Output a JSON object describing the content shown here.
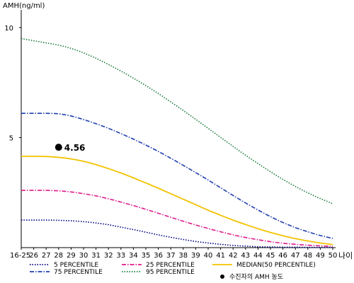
{
  "chart_data": {
    "type": "line",
    "ylabel": "AMH(ng/ml)",
    "xlabel": "나이",
    "ylim": [
      0,
      10.8
    ],
    "yticks": [
      5,
      10
    ],
    "categories": [
      "16-25",
      "26",
      "27",
      "28",
      "29",
      "30",
      "31",
      "32",
      "33",
      "34",
      "35",
      "36",
      "37",
      "38",
      "39",
      "40",
      "41",
      "42",
      "43",
      "44",
      "45",
      "46",
      "47",
      "48",
      "49",
      "50"
    ],
    "series": [
      {
        "name": "5 PERCENTILE",
        "color": "#000080",
        "dash": "1.5,2",
        "values": [
          1.25,
          1.25,
          1.25,
          1.24,
          1.22,
          1.18,
          1.12,
          1.04,
          0.93,
          0.82,
          0.7,
          0.58,
          0.47,
          0.37,
          0.28,
          0.21,
          0.15,
          0.1,
          0.07,
          0.04,
          0.03,
          0.02,
          0.02,
          0.01,
          0.01,
          0.01
        ]
      },
      {
        "name": "25 PERCENTILE",
        "color": "#e0198a",
        "dash": "6,2,1.5,2",
        "values": [
          2.6,
          2.6,
          2.6,
          2.58,
          2.53,
          2.45,
          2.35,
          2.22,
          2.07,
          1.91,
          1.74,
          1.56,
          1.38,
          1.2,
          1.03,
          0.87,
          0.72,
          0.58,
          0.46,
          0.36,
          0.27,
          0.2,
          0.15,
          0.11,
          0.08,
          0.06
        ]
      },
      {
        "name": "MEDIAN(50 PERCENTILE)",
        "color": "#f2c200",
        "dash": "",
        "values": [
          4.15,
          4.15,
          4.14,
          4.1,
          4.03,
          3.92,
          3.77,
          3.59,
          3.39,
          3.17,
          2.94,
          2.7,
          2.45,
          2.2,
          1.95,
          1.7,
          1.47,
          1.25,
          1.05,
          0.86,
          0.69,
          0.54,
          0.41,
          0.3,
          0.21,
          0.14
        ]
      },
      {
        "name": "75 PERCENTILE",
        "color": "#1f3fb0",
        "dash": "6,2,1.5,2",
        "values": [
          6.1,
          6.1,
          6.1,
          6.08,
          5.98,
          5.82,
          5.63,
          5.42,
          5.18,
          4.93,
          4.66,
          4.37,
          4.06,
          3.74,
          3.41,
          3.07,
          2.72,
          2.37,
          2.03,
          1.71,
          1.41,
          1.14,
          0.91,
          0.72,
          0.55,
          0.42
        ]
      },
      {
        "name": "95 PERCENTILE",
        "color": "#1a7a3a",
        "dash": "1.5,2",
        "values": [
          9.5,
          9.4,
          9.3,
          9.2,
          9.05,
          8.85,
          8.6,
          8.32,
          8.02,
          7.7,
          7.36,
          7.0,
          6.62,
          6.23,
          5.83,
          5.42,
          5.01,
          4.6,
          4.2,
          3.82,
          3.45,
          3.1,
          2.78,
          2.49,
          2.23,
          2.0
        ]
      }
    ],
    "point": {
      "name": "수진자의 AMH 농도",
      "x": "28",
      "y": 4.56,
      "label": "4.56",
      "color": "#000000"
    },
    "legend_position": "bottom"
  }
}
